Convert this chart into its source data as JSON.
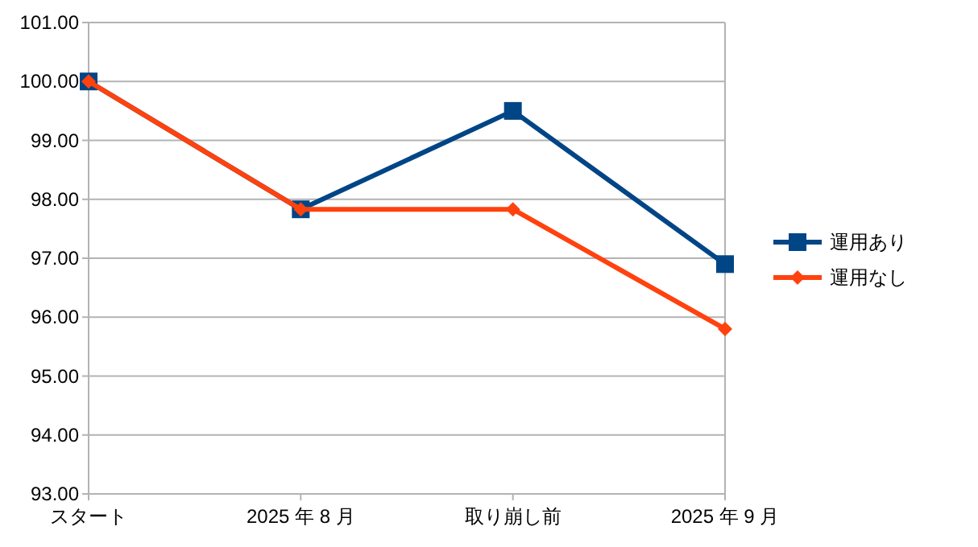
{
  "chart_data": {
    "type": "line",
    "categories": [
      "スタート",
      "2025 年 8 月",
      "取り崩し前",
      "2025 年 9 月"
    ],
    "series": [
      {
        "name": "運用あり",
        "color": "#004586",
        "marker": "square",
        "values": [
          100.0,
          97.83,
          99.5,
          96.9
        ]
      },
      {
        "name": "運用なし",
        "color": "#ff420e",
        "marker": "diamond",
        "values": [
          100.0,
          97.83,
          97.83,
          95.8
        ]
      }
    ],
    "ylim": [
      93,
      101
    ],
    "yticks": [
      {
        "value": 93,
        "label": "93.00"
      },
      {
        "value": 94,
        "label": "94.00"
      },
      {
        "value": 95,
        "label": "95.00"
      },
      {
        "value": 96,
        "label": "96.00"
      },
      {
        "value": 97,
        "label": "97.00"
      },
      {
        "value": 98,
        "label": "98.00"
      },
      {
        "value": 99,
        "label": "99.00"
      },
      {
        "value": 100,
        "label": "100.00"
      },
      {
        "value": 101,
        "label": "101.00"
      }
    ],
    "grid": "y",
    "legend": "right",
    "line_style": "solid"
  }
}
